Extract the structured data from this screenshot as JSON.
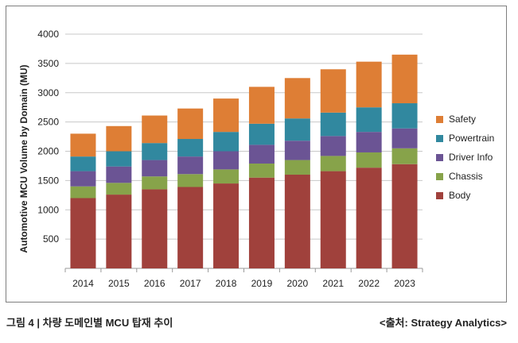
{
  "caption": "그림 4 | 차량 도메인별 MCU 탑재 추이",
  "source": "<출처: Strategy Analytics>",
  "chart_data": {
    "type": "bar",
    "stacked": true,
    "title": "",
    "xlabel": "",
    "ylabel": "Automotive MCU Volume by Domain (MU)",
    "ylim": [
      0,
      4000
    ],
    "yticks": [
      "500",
      "1000",
      "1500",
      "2000",
      "2500",
      "3000",
      "3500",
      "4000"
    ],
    "grid": true,
    "legend_position": "right",
    "categories": [
      "2014",
      "2015",
      "2016",
      "2017",
      "2018",
      "2019",
      "2020",
      "2021",
      "2022",
      "2023"
    ],
    "series": [
      {
        "name": "Body",
        "color": "#a0413c",
        "values": [
          1200,
          1260,
          1350,
          1390,
          1450,
          1550,
          1600,
          1660,
          1720,
          1780
        ]
      },
      {
        "name": "Chassis",
        "color": "#87a34a",
        "values": [
          200,
          200,
          220,
          220,
          240,
          240,
          250,
          260,
          260,
          270
        ]
      },
      {
        "name": "Driver Info",
        "color": "#6b5494",
        "values": [
          260,
          280,
          280,
          300,
          310,
          320,
          330,
          340,
          350,
          340
        ]
      },
      {
        "name": "Powertrain",
        "color": "#31889f",
        "values": [
          250,
          260,
          290,
          300,
          330,
          360,
          380,
          400,
          420,
          430
        ]
      },
      {
        "name": "Safety",
        "color": "#de7e35",
        "values": [
          390,
          430,
          470,
          520,
          570,
          630,
          690,
          740,
          780,
          830
        ]
      }
    ]
  }
}
